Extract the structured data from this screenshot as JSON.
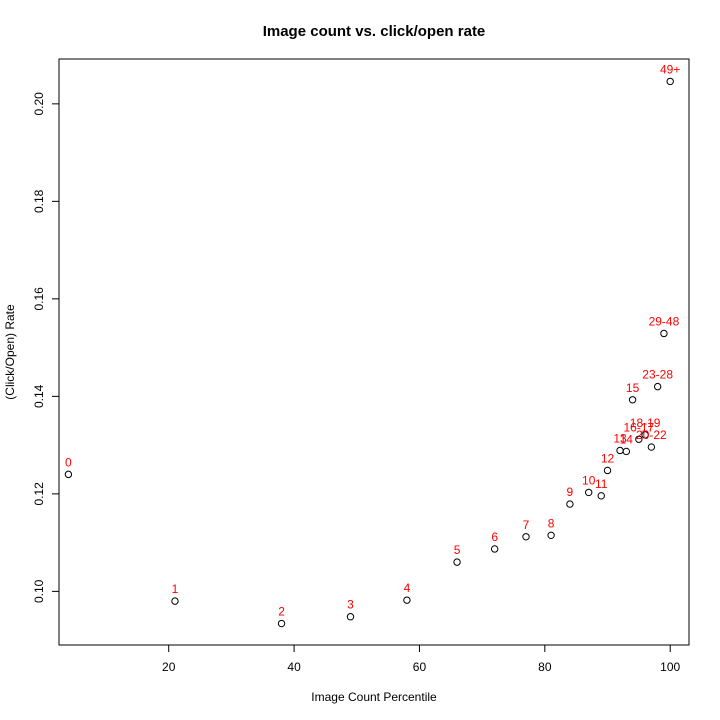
{
  "chart_data": {
    "type": "scatter",
    "title": "Image count vs. click/open rate",
    "xlabel": "Image Count Percentile",
    "ylabel": "(Click/Open) Rate",
    "xlim": [
      2.5,
      103
    ],
    "ylim": [
      0.089,
      0.2092
    ],
    "xticks": [
      20,
      40,
      60,
      80,
      100
    ],
    "yticks": [
      0.1,
      0.12,
      0.14,
      0.16,
      0.18,
      0.2
    ],
    "ytick_labels": [
      "0.10",
      "0.12",
      "0.14",
      "0.16",
      "0.18",
      "0.20"
    ],
    "label_color": "#ff0000",
    "marker": "open-circle",
    "points": [
      {
        "label": "0",
        "x": 4,
        "y": 0.124
      },
      {
        "label": "1",
        "x": 21,
        "y": 0.098
      },
      {
        "label": "2",
        "x": 38,
        "y": 0.0934
      },
      {
        "label": "3",
        "x": 49,
        "y": 0.0948
      },
      {
        "label": "4",
        "x": 58,
        "y": 0.0982
      },
      {
        "label": "5",
        "x": 66,
        "y": 0.106
      },
      {
        "label": "6",
        "x": 72,
        "y": 0.1087
      },
      {
        "label": "7",
        "x": 77,
        "y": 0.1112
      },
      {
        "label": "8",
        "x": 81,
        "y": 0.1115
      },
      {
        "label": "9",
        "x": 84,
        "y": 0.1179
      },
      {
        "label": "10",
        "x": 87,
        "y": 0.1203
      },
      {
        "label": "11",
        "x": 89,
        "y": 0.1196
      },
      {
        "label": "12",
        "x": 90,
        "y": 0.1248
      },
      {
        "label": "13",
        "x": 92,
        "y": 0.1289
      },
      {
        "label": "14",
        "x": 93,
        "y": 0.1287
      },
      {
        "label": "15",
        "x": 94,
        "y": 0.1393
      },
      {
        "label": "16-17",
        "x": 95,
        "y": 0.1312
      },
      {
        "label": "18-19",
        "x": 96,
        "y": 0.1321
      },
      {
        "label": "20-22",
        "x": 97,
        "y": 0.1296
      },
      {
        "label": "23-28",
        "x": 98,
        "y": 0.142
      },
      {
        "label": "29-48",
        "x": 99,
        "y": 0.1529
      },
      {
        "label": "49+",
        "x": 100,
        "y": 0.2046
      }
    ]
  }
}
